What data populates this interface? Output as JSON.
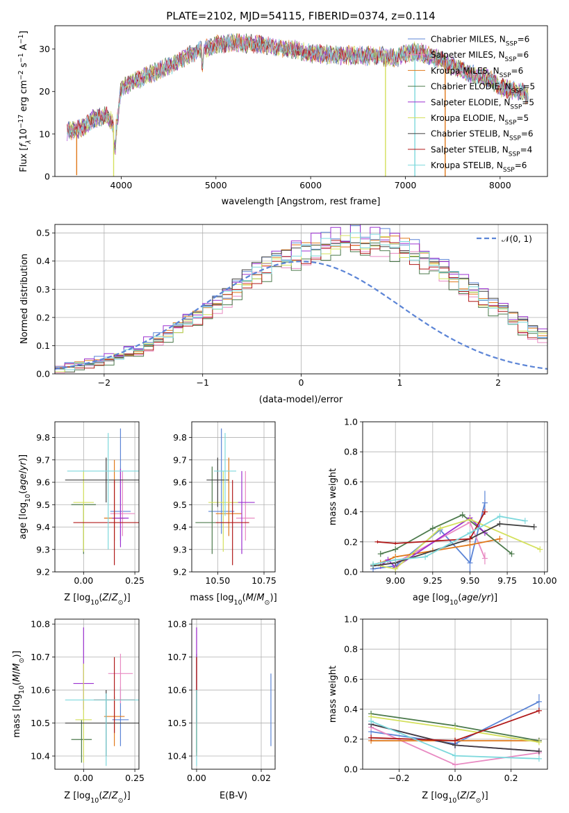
{
  "figure_title": "PLATE=2102, MJD=54115, FIBERID=0374, z=0.114",
  "colors": [
    "#5b84d6",
    "#e88ac2",
    "#e0781a",
    "#4c7a4c",
    "#9b30d0",
    "#d4e05c",
    "#404040",
    "#b01818",
    "#7cd8dc"
  ],
  "chart_data": [
    {
      "id": "spectrum",
      "type": "line",
      "xlabel": "wavelength [Angstrom, rest frame]",
      "ylabel": "Flux [fλ10⁻¹⁷ erg cm⁻² s⁻¹ A⁻¹]",
      "xlim": [
        3300,
        8500
      ],
      "ylim": [
        0,
        35.5
      ],
      "xticks": [
        4000,
        5000,
        6000,
        7000,
        8000
      ],
      "yticks": [
        0,
        10,
        20,
        30
      ],
      "grid": false,
      "legend_position": "top-right",
      "legend": [
        {
          "base": "Chabrier MILES, N",
          "sub": "SSP",
          "tail": "=6"
        },
        {
          "base": "Salpeter MILES, N",
          "sub": "SSP",
          "tail": "=6"
        },
        {
          "base": "Kroupa MILES, N",
          "sub": "SSP",
          "tail": "=6"
        },
        {
          "base": "Chabrier ELODIE, N",
          "sub": "SSP",
          "tail": "=5"
        },
        {
          "base": "Salpeter ELODIE, N",
          "sub": "SSP",
          "tail": "=5"
        },
        {
          "base": "Kroupa ELODIE, N",
          "sub": "SSP",
          "tail": "=5"
        },
        {
          "base": "Chabrier STELIB, N",
          "sub": "SSP",
          "tail": "=6"
        },
        {
          "base": "Salpeter STELIB, N",
          "sub": "SSP",
          "tail": "=4"
        },
        {
          "base": "Kroupa STELIB, N",
          "sub": "SSP",
          "tail": "=6"
        }
      ],
      "continuum": {
        "x": [
          3430,
          3600,
          3700,
          3850,
          3950,
          4000,
          4200,
          4500,
          4800,
          5000,
          5200,
          5500,
          5800,
          6000,
          6300,
          6600,
          6900,
          7100,
          7300,
          7500,
          7700,
          7900,
          8000,
          8200,
          8300
        ],
        "y": [
          10.5,
          11.5,
          13.5,
          14.5,
          11,
          21,
          23,
          26,
          29.5,
          31,
          31.5,
          31,
          30,
          29,
          28.5,
          28.5,
          28,
          29.5,
          28,
          26,
          24,
          23,
          21,
          20,
          19
        ]
      },
      "dips": [
        {
          "x": 3530,
          "y": 0.3,
          "series": 2
        },
        {
          "x": 3920,
          "y": 0,
          "series": 5
        },
        {
          "x": 6790,
          "y": 0,
          "series": 5
        },
        {
          "x": 7100,
          "y": 0,
          "series": 8
        },
        {
          "x": 7420,
          "y": 0,
          "series": 2
        }
      ]
    },
    {
      "id": "residuals",
      "type": "histogram",
      "xlabel": "(data-model)/error",
      "ylabel": "Normed distribution",
      "xlim": [
        -2.5,
        2.5
      ],
      "ylim": [
        0,
        0.53
      ],
      "xticks": [
        -2,
        -1,
        0,
        1,
        2
      ],
      "yticks": [
        0.0,
        0.1,
        0.2,
        0.3,
        0.4,
        0.5
      ],
      "grid": true,
      "legend": [
        {
          "label": "𝒩(0, 1)"
        }
      ],
      "legend_position": "top-right",
      "bin_width": 0.1,
      "bin_start": -2.5,
      "envelope": [
        0.017,
        0.022,
        0.028,
        0.035,
        0.042,
        0.05,
        0.06,
        0.072,
        0.086,
        0.103,
        0.12,
        0.14,
        0.16,
        0.18,
        0.2,
        0.22,
        0.245,
        0.27,
        0.3,
        0.33,
        0.355,
        0.375,
        0.39,
        0.405,
        0.418,
        0.43,
        0.44,
        0.45,
        0.458,
        0.465,
        0.47,
        0.47,
        0.465,
        0.46,
        0.452,
        0.44,
        0.425,
        0.405,
        0.385,
        0.362,
        0.338,
        0.313,
        0.288,
        0.262,
        0.237,
        0.212,
        0.19,
        0.168,
        0.148,
        0.13,
        0.114
      ],
      "gaussian": {
        "mu": 0,
        "sigma": 1
      }
    },
    {
      "id": "age-vs-Z",
      "type": "errorbar",
      "xlabel": "Z [log10(Z/Z⊙)]",
      "ylabel": "age [log10(age/yr)]",
      "xlim": [
        -0.14,
        0.27
      ],
      "ylim": [
        9.2,
        9.87
      ],
      "xticks": [
        0.0,
        0.25
      ],
      "xtick_labels": [
        "0.00",
        "0.25"
      ],
      "yticks": [
        9.2,
        9.3,
        9.4,
        9.5,
        9.6,
        9.7,
        9.8
      ],
      "grid": true,
      "points": [
        {
          "x": 0.18,
          "y": 9.47,
          "xerr": 0.05,
          "yerr": [
            0.13,
            0.37
          ]
        },
        {
          "x": 0.19,
          "y": 9.46,
          "xerr": 0.06,
          "yerr": [
            0.1,
            0.19
          ]
        },
        {
          "x": 0.15,
          "y": 9.44,
          "xerr": 0.05,
          "yerr": [
            0.1,
            0.26
          ]
        },
        {
          "x": 0.0,
          "y": 9.5,
          "xerr": 0.06,
          "yerr": [
            0.22,
            0.0
          ]
        },
        {
          "x": 0.18,
          "y": 9.44,
          "xerr": 0.04,
          "yerr": [
            0.13,
            0.22
          ]
        },
        {
          "x": 0.0,
          "y": 9.51,
          "xerr": 0.05,
          "yerr": [
            0.22,
            0.14
          ]
        },
        {
          "x": 0.11,
          "y": 9.61,
          "xerr": 0.2,
          "yerr": [
            0.1,
            0.1
          ]
        },
        {
          "x": 0.15,
          "y": 9.42,
          "xerr": 0.2,
          "yerr": [
            0.19,
            0.19
          ]
        },
        {
          "x": 0.12,
          "y": 9.65,
          "xerr": 0.2,
          "yerr": [
            0.35,
            0.17
          ]
        }
      ]
    },
    {
      "id": "age-vs-mass",
      "type": "errorbar",
      "xlabel": "mass [log10(M/M⊙)]",
      "ylabel": "",
      "xlim": [
        10.36,
        10.81
      ],
      "ylim": [
        9.2,
        9.87
      ],
      "xticks": [
        10.5,
        10.75
      ],
      "xtick_labels": [
        "10.50",
        "10.75"
      ],
      "yticks": [
        9.2,
        9.3,
        9.4,
        9.5,
        9.6,
        9.7,
        9.8
      ],
      "grid": true,
      "points": [
        {
          "x": 10.52,
          "y": 9.47,
          "xerr": 0.07,
          "yerr": [
            0.1,
            0.37
          ]
        },
        {
          "x": 10.65,
          "y": 9.44,
          "xerr": 0.05,
          "yerr": [
            0.1,
            0.21
          ]
        },
        {
          "x": 10.56,
          "y": 9.46,
          "xerr": 0.07,
          "yerr": [
            0.1,
            0.25
          ]
        },
        {
          "x": 10.47,
          "y": 9.42,
          "xerr": 0.09,
          "yerr": [
            0.14,
            0.25
          ]
        },
        {
          "x": 10.63,
          "y": 9.51,
          "xerr": 0.07,
          "yerr": [
            0.23,
            0.14
          ]
        },
        {
          "x": 10.53,
          "y": 9.51,
          "xerr": 0.08,
          "yerr": [
            0.22,
            0.14
          ]
        },
        {
          "x": 10.5,
          "y": 9.61,
          "xerr": 0.06,
          "yerr": [
            0.12,
            0.1
          ]
        },
        {
          "x": 10.58,
          "y": 9.42,
          "xerr": 0.09,
          "yerr": [
            0.19,
            0.19
          ]
        },
        {
          "x": 10.54,
          "y": 9.65,
          "xerr": 0.06,
          "yerr": [
            0.2,
            0.17
          ]
        }
      ]
    },
    {
      "id": "mass-weight-vs-age",
      "type": "line",
      "xlabel": "age [log10(age/yr)]",
      "ylabel": "mass weight",
      "xlim": [
        8.78,
        10.02
      ],
      "ylim": [
        0,
        1
      ],
      "xticks": [
        9.0,
        9.25,
        9.5,
        9.75,
        10.0
      ],
      "xtick_labels": [
        "9.00",
        "9.25",
        "9.50",
        "9.75",
        "10.00"
      ],
      "yticks": [
        0.0,
        0.2,
        0.4,
        0.6,
        0.8,
        1.0
      ],
      "grid": true,
      "series": [
        {
          "x": [
            8.85,
            9.0,
            9.3,
            9.5,
            9.6
          ],
          "y": [
            0.02,
            0.04,
            0.28,
            0.06,
            0.46
          ],
          "yerr": [
            0.03,
            0.03,
            0.03,
            0.12,
            0.08
          ]
        },
        {
          "x": [
            8.85,
            9.0,
            9.5,
            9.6
          ],
          "y": [
            0.04,
            0.06,
            0.33,
            0.09
          ],
          "yerr": [
            0.02,
            0.02,
            0.03,
            0.04
          ]
        },
        {
          "x": [
            8.9,
            9.0,
            9.25,
            9.5,
            9.7
          ],
          "y": [
            0.06,
            0.1,
            0.14,
            0.18,
            0.22
          ],
          "yerr": [
            0.02,
            0.02,
            0.02,
            0.02,
            0.02
          ]
        },
        {
          "x": [
            8.9,
            9.0,
            9.25,
            9.45,
            9.78
          ],
          "y": [
            0.12,
            0.15,
            0.29,
            0.38,
            0.12
          ],
          "yerr": [
            0.02,
            0.02,
            0.02,
            0.02,
            0.02
          ]
        },
        {
          "x": [
            8.9,
            8.95,
            9.0,
            9.5,
            9.6
          ],
          "y": [
            0.04,
            0.08,
            0.03,
            0.36,
            0.26
          ],
          "yerr": [
            0.02,
            0.02,
            0.02,
            0.02,
            0.02
          ]
        },
        {
          "x": [
            8.85,
            9.0,
            9.3,
            9.5,
            9.97
          ],
          "y": [
            0.05,
            0.02,
            0.29,
            0.35,
            0.15
          ],
          "yerr": [
            0.02,
            0.02,
            0.02,
            0.02,
            0.02
          ]
        },
        {
          "x": [
            8.85,
            9.0,
            9.5,
            9.7,
            9.93
          ],
          "y": [
            0.04,
            0.06,
            0.22,
            0.32,
            0.3
          ],
          "yerr": [
            0.02,
            0.02,
            0.02,
            0.02,
            0.02
          ]
        },
        {
          "x": [
            8.88,
            9.0,
            9.5,
            9.6
          ],
          "y": [
            0.2,
            0.19,
            0.22,
            0.4
          ],
          "yerr": [
            0.01,
            0.01,
            0.02,
            0.02
          ]
        },
        {
          "x": [
            8.85,
            9.0,
            9.2,
            9.5,
            9.7,
            9.87
          ],
          "y": [
            0.05,
            0.08,
            0.1,
            0.26,
            0.37,
            0.34
          ],
          "yerr": [
            0.02,
            0.02,
            0.02,
            0.02,
            0.02,
            0.02
          ]
        }
      ]
    },
    {
      "id": "mass-vs-Z",
      "type": "errorbar",
      "xlabel": "Z [log10(Z/Z⊙)]",
      "ylabel": "mass [log10(M/M⊙)]",
      "xlim": [
        -0.14,
        0.27
      ],
      "ylim": [
        10.36,
        10.815
      ],
      "xticks": [
        0.0,
        0.25
      ],
      "xtick_labels": [
        "0.00",
        "0.25"
      ],
      "yticks": [
        10.4,
        10.5,
        10.6,
        10.7,
        10.8
      ],
      "grid": true,
      "points": [
        {
          "x": 0.18,
          "y": 10.51,
          "xerr": 0.04,
          "yerr": [
            0.08,
            0.1
          ]
        },
        {
          "x": 0.18,
          "y": 10.65,
          "xerr": 0.06,
          "yerr": [
            0.09,
            0.06
          ]
        },
        {
          "x": 0.15,
          "y": 10.52,
          "xerr": 0.05,
          "yerr": [
            0.09,
            0.06
          ]
        },
        {
          "x": -0.01,
          "y": 10.45,
          "xerr": 0.05,
          "yerr": [
            0.07,
            0.06
          ]
        },
        {
          "x": 0.0,
          "y": 10.62,
          "xerr": 0.05,
          "yerr": [
            0.08,
            0.17
          ]
        },
        {
          "x": 0.0,
          "y": 10.51,
          "xerr": 0.04,
          "yerr": [
            0.13,
            0.17
          ]
        },
        {
          "x": 0.11,
          "y": 10.5,
          "xerr": 0.2,
          "yerr": [
            0.1,
            0.1
          ]
        },
        {
          "x": 0.15,
          "y": 10.57,
          "xerr": 0.1,
          "yerr": [
            0.1,
            0.13
          ]
        },
        {
          "x": 0.11,
          "y": 10.57,
          "xerr": 0.2,
          "yerr": [
            0.2,
            0.02
          ]
        }
      ]
    },
    {
      "id": "mass-vs-ebv",
      "type": "errorbar",
      "xlabel": "E(B-V)",
      "ylabel": "",
      "xlim": [
        -0.0015,
        0.0243
      ],
      "ylim": [
        10.36,
        10.815
      ],
      "xticks": [
        0.0,
        0.02
      ],
      "xtick_labels": [
        "0.00",
        "0.02"
      ],
      "yticks": [
        10.4,
        10.5,
        10.6,
        10.7,
        10.8
      ],
      "grid": true,
      "points": [
        {
          "x": 0.023,
          "y": 10.55,
          "xerr": 0,
          "yerr": [
            0.12,
            0.1
          ]
        },
        {
          "x": 0.0,
          "y": 10.6,
          "xerr": 0,
          "yerr": [
            0.2,
            0.19
          ]
        },
        {
          "x": 0.0,
          "y": 10.55,
          "xerr": 0,
          "yerr": [
            0.15,
            0.15
          ]
        },
        {
          "x": 0.0,
          "y": 10.58,
          "xerr": 0,
          "yerr": [
            0.17,
            0.13
          ]
        },
        {
          "x": 0.0,
          "y": 10.6,
          "xerr": 0,
          "yerr": [
            0.1,
            0.19
          ]
        },
        {
          "x": 0.0,
          "y": 10.5,
          "xerr": 0,
          "yerr": [
            0.1,
            0.1
          ]
        },
        {
          "x": 0.0,
          "y": 10.5,
          "xerr": 0,
          "yerr": [
            0.1,
            0.1
          ]
        },
        {
          "x": 0.0,
          "y": 10.6,
          "xerr": 0,
          "yerr": [
            0.0,
            0.1
          ]
        },
        {
          "x": 0.0,
          "y": 10.5,
          "xerr": 0,
          "yerr": [
            0.13,
            0.1
          ]
        }
      ]
    },
    {
      "id": "mass-weight-vs-Z",
      "type": "line",
      "xlabel": "Z [log10(Z/Z⊙)]",
      "ylabel": "mass weight",
      "xlim": [
        -0.33,
        0.33
      ],
      "ylim": [
        0,
        1
      ],
      "xticks": [
        -0.2,
        0.0,
        0.2
      ],
      "xtick_labels": [
        "−0.2",
        "0.0",
        "0.2"
      ],
      "yticks": [
        0.0,
        0.2,
        0.4,
        0.6,
        0.8,
        1.0
      ],
      "grid": true,
      "series": [
        {
          "x": [
            -0.3,
            0.0,
            0.3
          ],
          "y": [
            0.25,
            0.17,
            0.45
          ],
          "yerr": [
            0.03,
            0.03,
            0.05
          ]
        },
        {
          "x": [
            -0.3,
            0.0,
            0.3
          ],
          "y": [
            0.28,
            0.03,
            0.11
          ],
          "yerr": [
            0.02,
            0.02,
            0.02
          ]
        },
        {
          "x": [
            -0.3,
            0.0,
            0.3
          ],
          "y": [
            0.19,
            0.19,
            0.19
          ],
          "yerr": [
            0.02,
            0.02,
            0.02
          ]
        },
        {
          "x": [
            -0.3,
            0.0,
            0.3
          ],
          "y": [
            0.37,
            0.29,
            0.19
          ],
          "yerr": [
            0.02,
            0.02,
            0.02
          ]
        },
        {
          "x": [
            -0.3,
            0.0,
            0.3
          ],
          "y": [
            0.3,
            0.16,
            0.12
          ],
          "yerr": [
            0.02,
            0.02,
            0.02
          ]
        },
        {
          "x": [
            -0.3,
            0.0,
            0.3
          ],
          "y": [
            0.35,
            0.27,
            0.18
          ],
          "yerr": [
            0.02,
            0.02,
            0.02
          ]
        },
        {
          "x": [
            -0.3,
            0.0,
            0.3
          ],
          "y": [
            0.3,
            0.16,
            0.12
          ],
          "yerr": [
            0.02,
            0.02,
            0.02
          ]
        },
        {
          "x": [
            -0.3,
            0.0,
            0.3
          ],
          "y": [
            0.21,
            0.19,
            0.39
          ],
          "yerr": [
            0.02,
            0.02,
            0.02
          ]
        },
        {
          "x": [
            -0.3,
            0.0,
            0.3
          ],
          "y": [
            0.32,
            0.09,
            0.07
          ],
          "yerr": [
            0.02,
            0.02,
            0.02
          ]
        }
      ]
    }
  ]
}
